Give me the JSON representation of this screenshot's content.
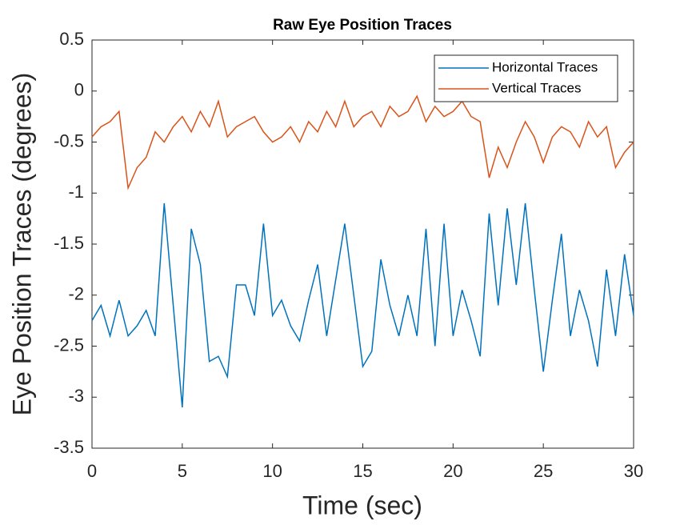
{
  "chart_data": {
    "type": "line",
    "title": "Raw Eye Position Traces",
    "x_label": "Time (sec)",
    "y_label": "Eye Position Traces (degrees)",
    "x": [
      0,
      0.5,
      1,
      1.5,
      2,
      2.5,
      3,
      3.5,
      4,
      4.5,
      5,
      5.5,
      6,
      6.5,
      7,
      7.5,
      8,
      8.5,
      9,
      9.5,
      10,
      10.5,
      11,
      11.5,
      12,
      12.5,
      13,
      13.5,
      14,
      14.5,
      15,
      15.5,
      16,
      16.5,
      17,
      17.5,
      18,
      18.5,
      19,
      19.5,
      20,
      20.5,
      21,
      21.5,
      22,
      22.5,
      23,
      23.5,
      24,
      24.5,
      25,
      25.5,
      26,
      26.5,
      27,
      27.5,
      28,
      28.5,
      29,
      29.5,
      30
    ],
    "series": [
      {
        "name": "Horizontal Traces",
        "color": "#0072bd",
        "values": [
          -2.25,
          -2.1,
          -2.4,
          -2.05,
          -2.4,
          -2.3,
          -2.15,
          -2.4,
          -1.1,
          -2.1,
          -3.1,
          -1.35,
          -1.7,
          -2.65,
          -2.6,
          -2.8,
          -1.9,
          -1.9,
          -2.2,
          -1.3,
          -2.2,
          -2.05,
          -2.3,
          -2.45,
          -2.05,
          -1.7,
          -2.4,
          -1.85,
          -1.3,
          -2.0,
          -2.7,
          -2.55,
          -1.65,
          -2.1,
          -2.4,
          -2.0,
          -2.4,
          -1.35,
          -2.5,
          -1.3,
          -2.4,
          -1.95,
          -2.25,
          -2.6,
          -1.2,
          -2.1,
          -1.15,
          -1.9,
          -1.1,
          -1.95,
          -2.75,
          -2.05,
          -1.4,
          -2.4,
          -1.95,
          -2.25,
          -2.7,
          -1.75,
          -2.4,
          -1.6,
          -2.2
        ]
      },
      {
        "name": "Vertical Traces",
        "color": "#d95319",
        "values": [
          -0.45,
          -0.35,
          -0.3,
          -0.2,
          -0.95,
          -0.75,
          -0.65,
          -0.4,
          -0.5,
          -0.35,
          -0.25,
          -0.4,
          -0.2,
          -0.35,
          -0.1,
          -0.45,
          -0.35,
          -0.3,
          -0.25,
          -0.4,
          -0.5,
          -0.45,
          -0.35,
          -0.5,
          -0.3,
          -0.4,
          -0.2,
          -0.35,
          -0.1,
          -0.35,
          -0.25,
          -0.2,
          -0.35,
          -0.15,
          -0.25,
          -0.2,
          -0.05,
          -0.3,
          -0.15,
          -0.25,
          -0.2,
          -0.1,
          -0.25,
          -0.3,
          -0.85,
          -0.55,
          -0.75,
          -0.5,
          -0.3,
          -0.45,
          -0.7,
          -0.45,
          -0.35,
          -0.4,
          -0.55,
          -0.3,
          -0.45,
          -0.35,
          -0.75,
          -0.6,
          -0.5
        ]
      }
    ],
    "xlim": [
      0,
      30
    ],
    "xticks": [
      0,
      5,
      10,
      15,
      20,
      25,
      30
    ],
    "ylim": [
      -3.5,
      0.5
    ],
    "yticks": [
      -3.5,
      -3,
      -2.5,
      -2,
      -1.5,
      -1,
      -0.5,
      0,
      0.5
    ],
    "grid": false,
    "legend": "northeast"
  }
}
